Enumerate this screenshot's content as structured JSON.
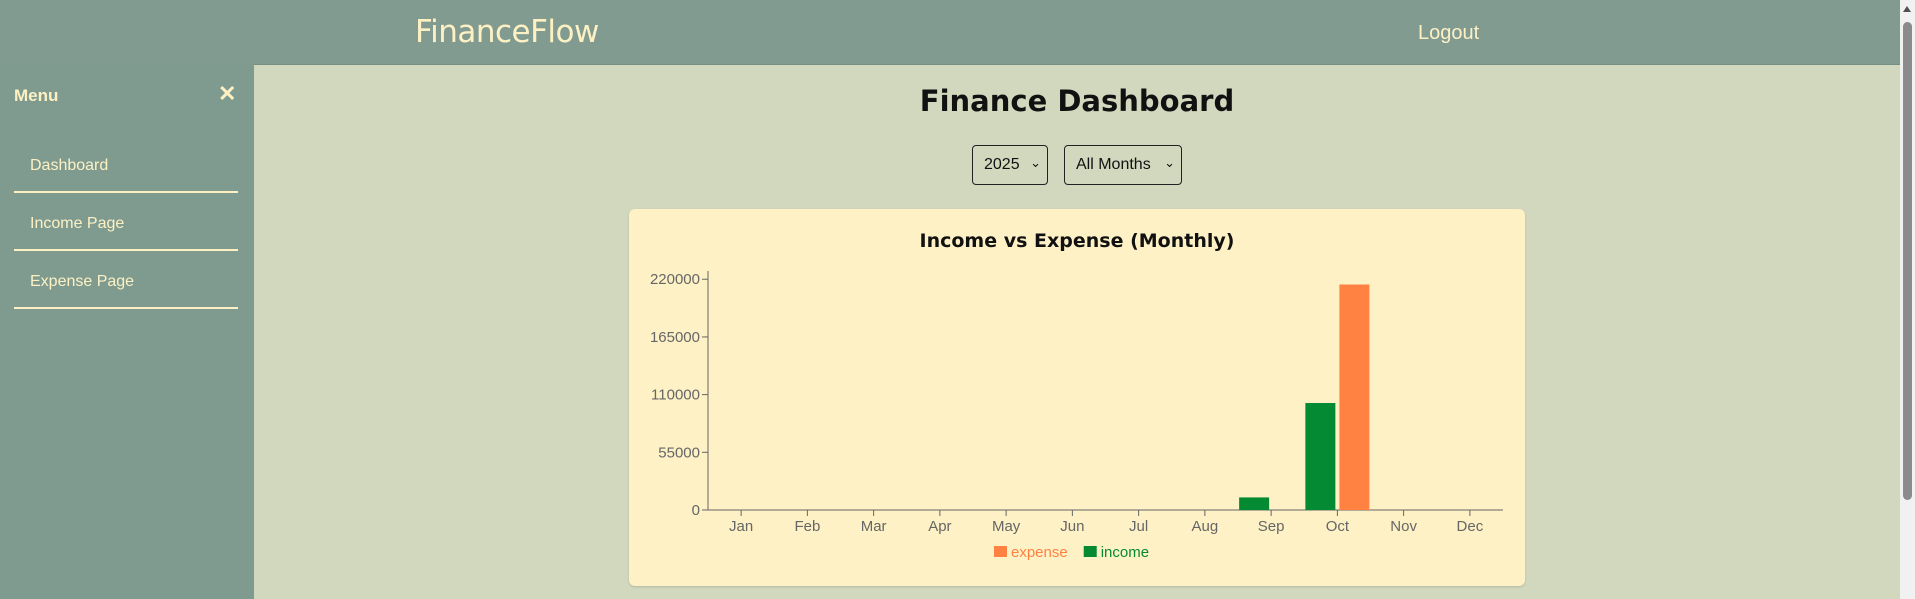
{
  "header": {
    "brand": "FinanceFlow",
    "logout_label": "Logout"
  },
  "sidebar": {
    "menu_title": "Menu",
    "close_symbol": "✕",
    "items": [
      {
        "label": "Dashboard"
      },
      {
        "label": "Income Page"
      },
      {
        "label": "Expense Page"
      }
    ]
  },
  "main": {
    "title": "Finance Dashboard",
    "year_select": {
      "value": "2025"
    },
    "month_select": {
      "value": "All Months"
    }
  },
  "chart_data": {
    "type": "bar",
    "title": "Income vs Expense (Monthly)",
    "xlabel": "",
    "ylabel": "",
    "categories": [
      "Jan",
      "Feb",
      "Mar",
      "Apr",
      "May",
      "Jun",
      "Jul",
      "Aug",
      "Sep",
      "Oct",
      "Nov",
      "Dec"
    ],
    "yticks": [
      "0",
      "55000",
      "110000",
      "165000",
      "220000"
    ],
    "ylim": [
      0,
      225000
    ],
    "grid": false,
    "legend_position": "bottom",
    "series": [
      {
        "name": "income",
        "color": "#058a34",
        "values": [
          0,
          0,
          0,
          0,
          0,
          0,
          0,
          0,
          12000,
          102000,
          0,
          0
        ]
      },
      {
        "name": "expense",
        "color": "#ff8243",
        "values": [
          0,
          0,
          0,
          0,
          0,
          0,
          0,
          0,
          0,
          215000,
          0,
          0
        ]
      }
    ],
    "legend_order": [
      "expense",
      "income"
    ]
  }
}
